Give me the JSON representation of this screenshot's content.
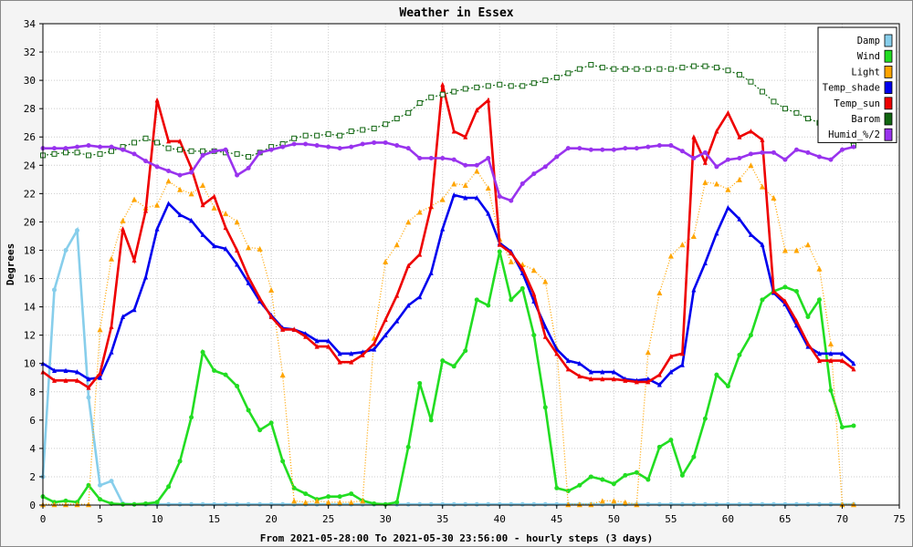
{
  "chart_data": {
    "type": "line",
    "title": "Weather in Essex",
    "xlabel": "From 2021-05-28:00 To 2021-05-30 23:56:00 - hourly steps (3 days)",
    "ylabel": "Degrees",
    "xlim": [
      0,
      75
    ],
    "ylim": [
      0,
      34
    ],
    "x_ticks": [
      0,
      5,
      10,
      15,
      20,
      25,
      30,
      35,
      40,
      45,
      50,
      55,
      60,
      65,
      70,
      75
    ],
    "y_ticks": [
      0,
      2,
      4,
      6,
      8,
      10,
      12,
      14,
      16,
      18,
      20,
      22,
      24,
      26,
      28,
      30,
      32,
      34
    ],
    "grid": true,
    "legend_position": "top-right",
    "series": [
      {
        "name": "Damp",
        "color": "#87ceeb",
        "values": [
          2.0,
          15.2,
          18.0,
          19.4,
          7.6,
          1.4,
          1.7,
          0.1,
          0.05,
          0.05,
          0.05,
          0.05,
          0.05,
          0.05,
          0.05,
          0.05,
          0.05,
          0.05,
          0.05,
          0.05,
          0.05,
          0.05,
          0.05,
          0.05,
          0.05,
          0.05,
          0.05,
          0.05,
          0.05,
          0.05,
          0.05,
          0.05,
          0.05,
          0.05,
          0.05,
          0.05,
          0.05,
          0.05,
          0.05,
          0.05,
          0.05,
          0.05,
          0.05,
          0.05,
          0.05,
          0.05,
          0.05,
          0.05,
          0.05,
          0.05,
          0.05,
          0.05,
          0.05,
          0.05,
          0.05,
          0.05,
          0.05,
          0.05,
          0.05,
          0.05,
          0.05,
          0.05,
          0.05,
          0.05,
          0.05,
          0.05,
          0.05,
          0.05,
          0.05,
          0.05,
          0.05,
          0.05
        ]
      },
      {
        "name": "Wind",
        "color": "#22dd22",
        "values": [
          0.6,
          0.2,
          0.3,
          0.2,
          1.4,
          0.4,
          0.1,
          0.05,
          0.05,
          0.1,
          0.2,
          1.3,
          3.1,
          6.2,
          10.8,
          9.5,
          9.2,
          8.4,
          6.7,
          5.3,
          5.8,
          3.1,
          1.2,
          0.8,
          0.4,
          0.6,
          0.6,
          0.8,
          0.3,
          0.1,
          0.05,
          0.2,
          4.1,
          8.6,
          6.0,
          10.2,
          9.8,
          10.9,
          14.5,
          14.1,
          17.9,
          14.5,
          15.3,
          12.0,
          6.9,
          1.2,
          1.0,
          1.4,
          2.0,
          1.8,
          1.5,
          2.1,
          2.3,
          1.8,
          4.1,
          4.6,
          2.1,
          3.4,
          6.1,
          9.2,
          8.4,
          10.6,
          12.0,
          14.5,
          15.1,
          15.4,
          15.1,
          13.3,
          14.5,
          8.1,
          5.5,
          5.6
        ]
      },
      {
        "name": "Light",
        "color": "#ffa500",
        "values": [
          0.05,
          0.05,
          0.05,
          0.05,
          0.05,
          12.4,
          17.4,
          20.1,
          21.6,
          21.0,
          21.2,
          22.9,
          22.3,
          22.0,
          22.6,
          21.0,
          20.6,
          20.0,
          18.2,
          18.1,
          15.2,
          9.2,
          0.3,
          0.2,
          0.3,
          0.2,
          0.2,
          0.2,
          0.3,
          11.8,
          17.2,
          18.4,
          20.0,
          20.7,
          21.1,
          21.6,
          22.7,
          22.6,
          23.6,
          22.4,
          18.8,
          17.2,
          17.0,
          16.6,
          15.8,
          11.1,
          0.05,
          0.05,
          0.05,
          0.3,
          0.3,
          0.2,
          0.05,
          10.8,
          15.0,
          17.6,
          18.4,
          19.0,
          22.8,
          22.7,
          22.3,
          23.0,
          24.0,
          22.5,
          21.7,
          18.0,
          18.0,
          18.4,
          16.7,
          11.4,
          0.05,
          0.05
        ]
      },
      {
        "name": "Temp_shade",
        "color": "#0000ee",
        "values": [
          10.0,
          9.5,
          9.5,
          9.4,
          8.9,
          9.0,
          10.8,
          13.3,
          13.8,
          16.1,
          19.5,
          21.3,
          20.5,
          20.1,
          19.1,
          18.3,
          18.1,
          17.0,
          15.7,
          14.4,
          13.4,
          12.5,
          12.4,
          12.1,
          11.6,
          11.6,
          10.7,
          10.7,
          10.8,
          11.0,
          12.0,
          13.0,
          14.1,
          14.7,
          16.4,
          19.5,
          21.9,
          21.7,
          21.7,
          20.6,
          18.5,
          17.9,
          16.4,
          14.4,
          12.6,
          11.0,
          10.2,
          10.0,
          9.4,
          9.4,
          9.4,
          8.9,
          8.8,
          8.9,
          8.5,
          9.4,
          9.9,
          15.2,
          17.1,
          19.2,
          21.0,
          20.2,
          19.1,
          18.4,
          15.0,
          14.2,
          12.7,
          11.2,
          10.7,
          10.7,
          10.7,
          10.0
        ]
      },
      {
        "name": "Temp_sun",
        "color": "#ee0000",
        "values": [
          9.4,
          8.8,
          8.8,
          8.8,
          8.3,
          9.3,
          12.6,
          19.5,
          17.3,
          20.8,
          28.6,
          25.7,
          25.7,
          23.8,
          21.2,
          21.8,
          19.6,
          18.0,
          16.1,
          14.6,
          13.3,
          12.4,
          12.4,
          11.9,
          11.2,
          11.2,
          10.1,
          10.1,
          10.6,
          11.4,
          13.1,
          14.8,
          16.9,
          17.7,
          21.1,
          29.7,
          26.4,
          26.0,
          27.9,
          28.6,
          18.4,
          17.8,
          16.7,
          14.9,
          11.9,
          10.7,
          9.6,
          9.1,
          8.9,
          8.9,
          8.9,
          8.8,
          8.7,
          8.7,
          9.2,
          10.5,
          10.7,
          26.0,
          24.2,
          26.4,
          27.7,
          26.0,
          26.4,
          25.8,
          15.1,
          14.4,
          13.0,
          11.4,
          10.2,
          10.2,
          10.2,
          9.6
        ]
      },
      {
        "name": "Barom",
        "color": "#116611",
        "dashed": true,
        "values": [
          24.7,
          24.8,
          24.9,
          24.9,
          24.7,
          24.8,
          25.0,
          25.3,
          25.6,
          25.9,
          25.6,
          25.2,
          25.1,
          25.0,
          25.0,
          25.0,
          24.9,
          24.8,
          24.6,
          24.9,
          25.3,
          25.5,
          25.9,
          26.1,
          26.1,
          26.2,
          26.1,
          26.4,
          26.5,
          26.6,
          26.9,
          27.3,
          27.7,
          28.4,
          28.8,
          29.0,
          29.2,
          29.4,
          29.5,
          29.6,
          29.7,
          29.6,
          29.6,
          29.8,
          30.0,
          30.2,
          30.5,
          30.8,
          31.1,
          30.9,
          30.8,
          30.8,
          30.8,
          30.8,
          30.8,
          30.8,
          30.9,
          31.0,
          31.0,
          30.9,
          30.7,
          30.4,
          29.9,
          29.2,
          28.5,
          28.0,
          27.7,
          27.3,
          27.0,
          26.6,
          26.0,
          25.4
        ]
      },
      {
        "name": "Humid_%/2",
        "color": "#9933ee",
        "values": [
          25.2,
          25.2,
          25.2,
          25.3,
          25.4,
          25.3,
          25.3,
          25.1,
          24.8,
          24.3,
          23.9,
          23.6,
          23.3,
          23.5,
          24.7,
          25.0,
          25.1,
          23.3,
          23.8,
          24.9,
          25.1,
          25.3,
          25.5,
          25.5,
          25.4,
          25.3,
          25.2,
          25.3,
          25.5,
          25.6,
          25.6,
          25.4,
          25.2,
          24.5,
          24.5,
          24.5,
          24.4,
          24.0,
          24.0,
          24.5,
          21.8,
          21.5,
          22.7,
          23.4,
          23.9,
          24.6,
          25.2,
          25.2,
          25.1,
          25.1,
          25.1,
          25.2,
          25.2,
          25.3,
          25.4,
          25.4,
          25.0,
          24.5,
          24.9,
          23.9,
          24.4,
          24.5,
          24.8,
          24.9,
          24.9,
          24.4,
          25.1,
          24.9,
          24.6,
          24.4,
          25.1,
          25.3
        ]
      }
    ]
  }
}
